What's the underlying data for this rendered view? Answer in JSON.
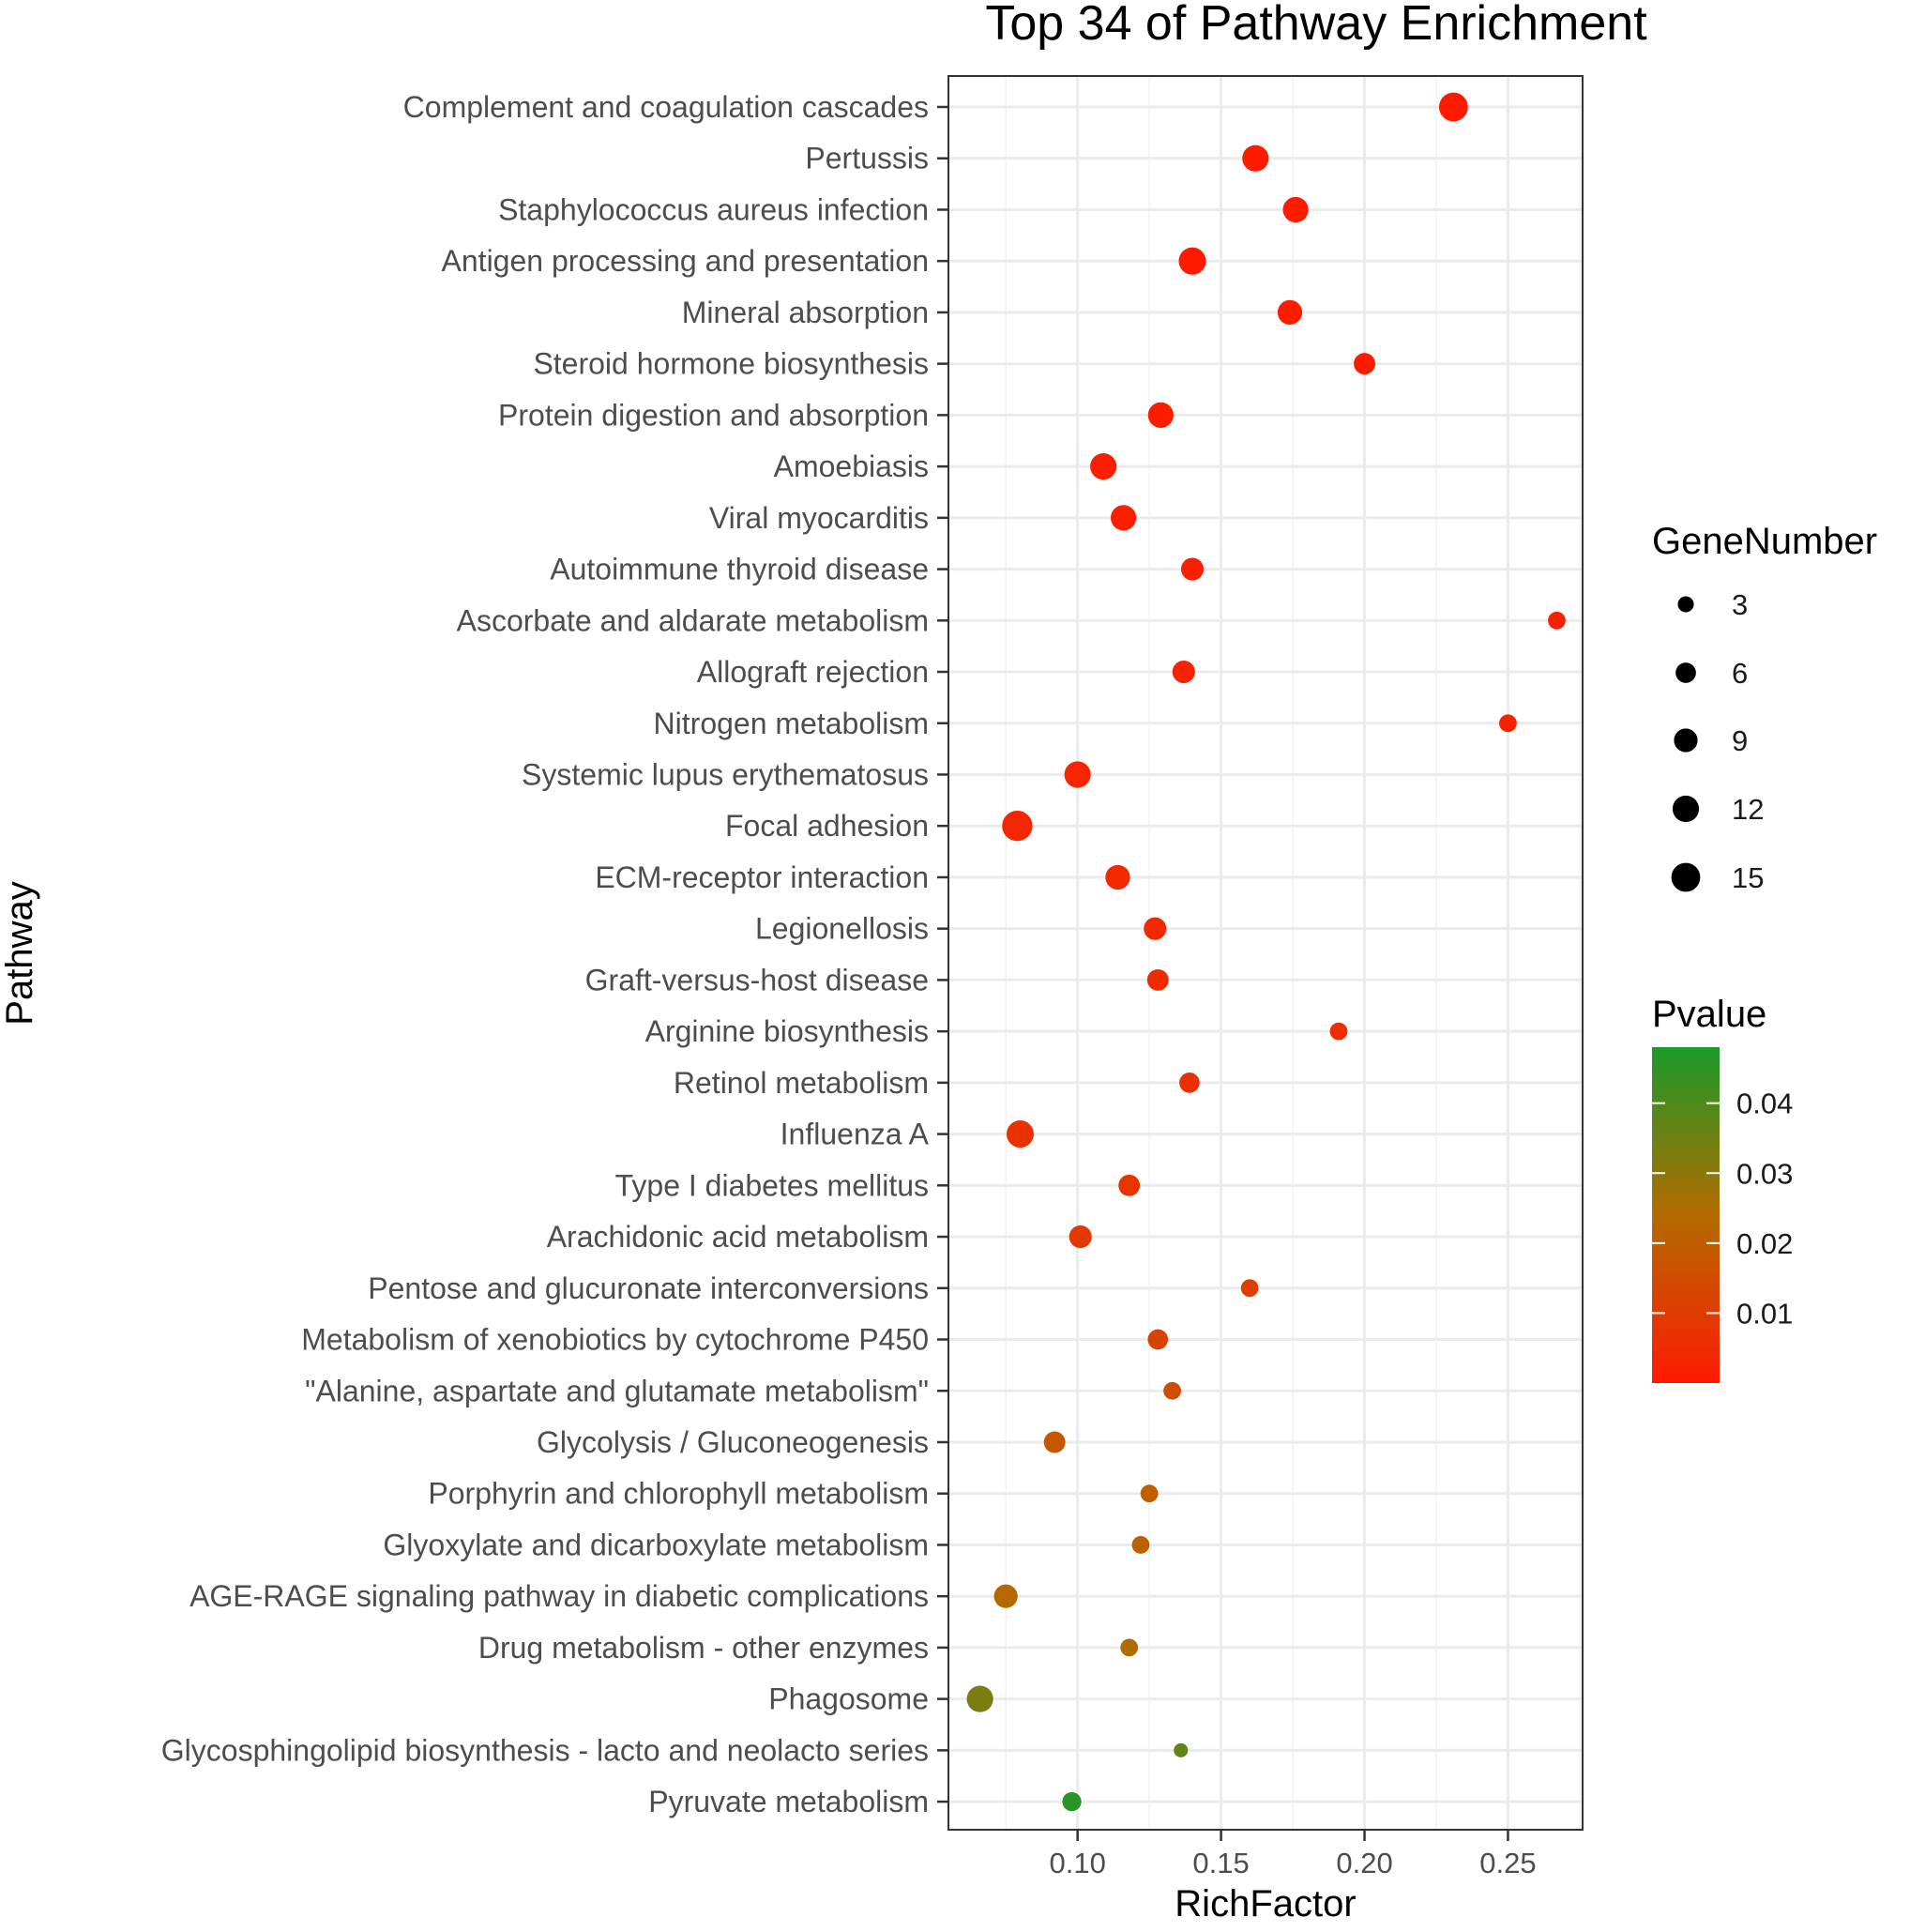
{
  "chart_data": {
    "type": "scatter",
    "title": "Top 34 of Pathway Enrichment",
    "xlabel": "RichFactor",
    "ylabel": "Pathway",
    "xlim": [
      0.055,
      0.276
    ],
    "xticks": [
      0.1,
      0.15,
      0.2,
      0.25
    ],
    "xtick_labels": [
      "0.10",
      "0.15",
      "0.20",
      "0.25"
    ],
    "grid": true,
    "points": [
      {
        "pathway": "Complement and coagulation cascades",
        "rich_factor": 0.231,
        "gene_number": 15,
        "pvalue": 0.0001
      },
      {
        "pathway": "Pertussis",
        "rich_factor": 0.162,
        "gene_number": 12,
        "pvalue": 0.0002
      },
      {
        "pathway": "Staphylococcus aureus infection",
        "rich_factor": 0.176,
        "gene_number": 11,
        "pvalue": 0.0003
      },
      {
        "pathway": "Antigen processing and presentation",
        "rich_factor": 0.14,
        "gene_number": 13,
        "pvalue": 0.0004
      },
      {
        "pathway": "Mineral absorption",
        "rich_factor": 0.174,
        "gene_number": 10,
        "pvalue": 0.0005
      },
      {
        "pathway": "Steroid hormone biosynthesis",
        "rich_factor": 0.2,
        "gene_number": 7,
        "pvalue": 0.0007
      },
      {
        "pathway": "Protein digestion and absorption",
        "rich_factor": 0.129,
        "gene_number": 11,
        "pvalue": 0.0009
      },
      {
        "pathway": "Amoebiasis",
        "rich_factor": 0.109,
        "gene_number": 12,
        "pvalue": 0.0012
      },
      {
        "pathway": "Viral myocarditis",
        "rich_factor": 0.116,
        "gene_number": 11,
        "pvalue": 0.0014
      },
      {
        "pathway": "Autoimmune thyroid disease",
        "rich_factor": 0.14,
        "gene_number": 8,
        "pvalue": 0.0016
      },
      {
        "pathway": "Ascorbate and aldarate metabolism",
        "rich_factor": 0.267,
        "gene_number": 4,
        "pvalue": 0.0018
      },
      {
        "pathway": "Allograft rejection",
        "rich_factor": 0.137,
        "gene_number": 8,
        "pvalue": 0.0022
      },
      {
        "pathway": "Nitrogen metabolism",
        "rich_factor": 0.25,
        "gene_number": 4,
        "pvalue": 0.0026
      },
      {
        "pathway": "Systemic lupus erythematosus",
        "rich_factor": 0.1,
        "gene_number": 12,
        "pvalue": 0.003
      },
      {
        "pathway": "Focal adhesion",
        "rich_factor": 0.079,
        "gene_number": 17,
        "pvalue": 0.0035
      },
      {
        "pathway": "ECM-receptor interaction",
        "rich_factor": 0.114,
        "gene_number": 10,
        "pvalue": 0.004
      },
      {
        "pathway": "Legionellosis",
        "rich_factor": 0.127,
        "gene_number": 8,
        "pvalue": 0.0046
      },
      {
        "pathway": "Graft-versus-host disease",
        "rich_factor": 0.128,
        "gene_number": 7,
        "pvalue": 0.0052
      },
      {
        "pathway": "Arginine biosynthesis",
        "rich_factor": 0.191,
        "gene_number": 4,
        "pvalue": 0.0058
      },
      {
        "pathway": "Retinol metabolism",
        "rich_factor": 0.139,
        "gene_number": 6,
        "pvalue": 0.0065
      },
      {
        "pathway": "Influenza A",
        "rich_factor": 0.08,
        "gene_number": 13,
        "pvalue": 0.0072
      },
      {
        "pathway": "Type I diabetes mellitus",
        "rich_factor": 0.118,
        "gene_number": 7,
        "pvalue": 0.008
      },
      {
        "pathway": "Arachidonic acid metabolism",
        "rich_factor": 0.101,
        "gene_number": 8,
        "pvalue": 0.009
      },
      {
        "pathway": "Pentose and glucuronate interconversions",
        "rich_factor": 0.16,
        "gene_number": 4,
        "pvalue": 0.011
      },
      {
        "pathway": "Metabolism of xenobiotics by cytochrome P450",
        "rich_factor": 0.128,
        "gene_number": 6,
        "pvalue": 0.0125
      },
      {
        "pathway": "\"Alanine, aspartate and glutamate metabolism\"",
        "rich_factor": 0.133,
        "gene_number": 4,
        "pvalue": 0.015
      },
      {
        "pathway": "Glycolysis / Gluconeogenesis",
        "rich_factor": 0.092,
        "gene_number": 7,
        "pvalue": 0.018
      },
      {
        "pathway": "Porphyrin and chlorophyll metabolism",
        "rich_factor": 0.125,
        "gene_number": 4,
        "pvalue": 0.02
      },
      {
        "pathway": "Glyoxylate and dicarboxylate metabolism",
        "rich_factor": 0.122,
        "gene_number": 4,
        "pvalue": 0.021
      },
      {
        "pathway": "AGE-RAGE signaling pathway in diabetic complications",
        "rich_factor": 0.075,
        "gene_number": 9,
        "pvalue": 0.023
      },
      {
        "pathway": "Drug metabolism - other enzymes",
        "rich_factor": 0.118,
        "gene_number": 4,
        "pvalue": 0.025
      },
      {
        "pathway": "Phagosome",
        "rich_factor": 0.066,
        "gene_number": 12,
        "pvalue": 0.033
      },
      {
        "pathway": "Glycosphingolipid biosynthesis - lacto and neolacto series",
        "rich_factor": 0.136,
        "gene_number": 2,
        "pvalue": 0.037
      },
      {
        "pathway": "Pyruvate metabolism",
        "rich_factor": 0.098,
        "gene_number": 5,
        "pvalue": 0.046
      }
    ],
    "size_legend": {
      "title": "GeneNumber",
      "values": [
        3,
        6,
        9,
        12,
        15
      ],
      "labels": [
        "3",
        "6",
        "9",
        "12",
        "15"
      ]
    },
    "color_legend": {
      "title": "Pvalue",
      "range": [
        0.0,
        0.048
      ],
      "ticks": [
        0.04,
        0.03,
        0.02,
        0.01
      ],
      "tick_labels": [
        "0.04",
        "0.03",
        "0.02",
        "0.01"
      ],
      "low_color": "#ff1a00",
      "mid_color": "#b36b00",
      "high_color": "#1a9a2a"
    },
    "panel_background": "#ffffff",
    "grid_color": "#ebebeb",
    "axis_color": "#333333"
  }
}
